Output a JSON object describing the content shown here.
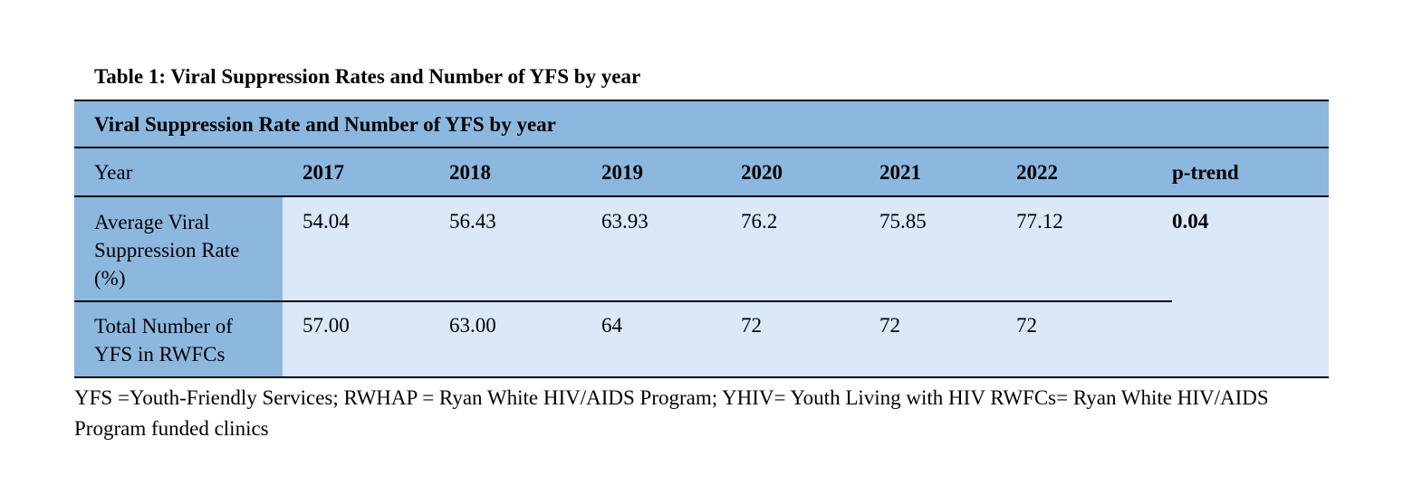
{
  "caption": "Table 1: Viral Suppression Rates and Number of YFS by year",
  "table": {
    "title": "Viral Suppression Rate and Number of YFS by year",
    "header": {
      "label": "Year",
      "years": [
        "2017",
        "2018",
        "2019",
        "2020",
        "2021",
        "2022"
      ],
      "trend": "p-trend"
    },
    "rows": [
      {
        "label_lines": [
          "Average Viral",
          "Suppression Rate",
          "(%)"
        ],
        "values": [
          "54.04",
          "56.43",
          "63.93",
          "76.2",
          "75.85",
          "77.12"
        ],
        "trend": "0.04"
      },
      {
        "label_lines": [
          "Total Number of",
          "YFS in RWFCs"
        ],
        "values": [
          "57.00",
          "63.00",
          "64",
          "72",
          "72",
          "72"
        ],
        "trend": ""
      }
    ]
  },
  "footnote": "YFS =Youth-Friendly Services; RWHAP = Ryan White HIV/AIDS Program; YHIV= Youth Living with HIV RWFCs= Ryan White HIV/AIDS Program funded clinics",
  "colors": {
    "header_band": "#8cb8e0",
    "body_band": "#dae8f8"
  }
}
